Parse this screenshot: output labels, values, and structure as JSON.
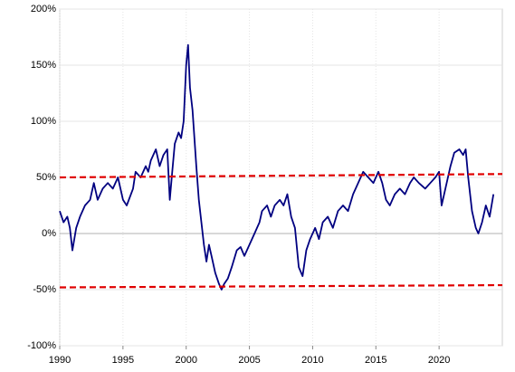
{
  "chart_data": {
    "type": "line",
    "x": [
      1990.0,
      1990.3,
      1990.6,
      1990.8,
      1991.0,
      1991.3,
      1991.6,
      1992.0,
      1992.4,
      1992.7,
      1993.0,
      1993.4,
      1993.8,
      1994.2,
      1994.6,
      1995.0,
      1995.3,
      1995.8,
      1996.0,
      1996.4,
      1996.8,
      1997.0,
      1997.2,
      1997.6,
      1997.9,
      1998.2,
      1998.5,
      1998.7,
      1998.9,
      1999.1,
      1999.4,
      1999.6,
      1999.8,
      2000.0,
      2000.15,
      2000.3,
      2000.5,
      2000.8,
      2001.0,
      2001.2,
      2001.4,
      2001.6,
      2001.8,
      2002.0,
      2002.3,
      2002.6,
      2002.8,
      2003.0,
      2003.3,
      2003.6,
      2004.0,
      2004.3,
      2004.6,
      2005.0,
      2005.4,
      2005.8,
      2006.0,
      2006.4,
      2006.7,
      2007.0,
      2007.4,
      2007.7,
      2008.0,
      2008.3,
      2008.6,
      2008.9,
      2009.2,
      2009.5,
      2009.8,
      2010.2,
      2010.5,
      2010.8,
      2011.2,
      2011.6,
      2012.0,
      2012.4,
      2012.8,
      2013.2,
      2013.6,
      2014.0,
      2014.4,
      2014.8,
      2015.2,
      2015.5,
      2015.8,
      2016.1,
      2016.5,
      2016.9,
      2017.3,
      2017.7,
      2018.0,
      2018.4,
      2018.9,
      2019.3,
      2019.7,
      2020.0,
      2020.2,
      2020.5,
      2020.9,
      2021.2,
      2021.6,
      2021.9,
      2022.1,
      2022.3,
      2022.6,
      2022.9,
      2023.1,
      2023.4,
      2023.7,
      2024.0,
      2024.3
    ],
    "series": [
      {
        "color": "#000080",
        "values": [
          20,
          10,
          15,
          5,
          -15,
          5,
          15,
          25,
          30,
          45,
          30,
          40,
          45,
          40,
          50,
          30,
          25,
          40,
          55,
          50,
          60,
          55,
          65,
          75,
          60,
          70,
          75,
          30,
          55,
          80,
          90,
          85,
          100,
          150,
          168,
          130,
          110,
          60,
          30,
          10,
          -10,
          -25,
          -10,
          -20,
          -35,
          -45,
          -50,
          -45,
          -40,
          -30,
          -15,
          -12,
          -20,
          -10,
          0,
          10,
          20,
          25,
          15,
          25,
          30,
          25,
          35,
          15,
          5,
          -30,
          -38,
          -15,
          -5,
          5,
          -5,
          10,
          15,
          5,
          20,
          25,
          20,
          35,
          45,
          55,
          50,
          45,
          55,
          45,
          30,
          25,
          35,
          40,
          35,
          45,
          50,
          45,
          40,
          45,
          50,
          55,
          25,
          40,
          60,
          72,
          75,
          70,
          75,
          50,
          20,
          5,
          0,
          10,
          25,
          15,
          35
        ]
      }
    ],
    "xlim": [
      1990,
      2025
    ],
    "xticks": [
      1990,
      1995,
      2000,
      2005,
      2010,
      2015,
      2020
    ],
    "ylim": [
      -100,
      200
    ],
    "yticks": [
      {
        "value": -100,
        "label": "-100%"
      },
      {
        "value": -50,
        "label": "-50%"
      },
      {
        "value": 0,
        "label": "0%"
      },
      {
        "value": 50,
        "label": "50%"
      },
      {
        "value": 100,
        "label": "100%"
      },
      {
        "value": 150,
        "label": "150%"
      },
      {
        "value": 200,
        "label": "200%"
      }
    ],
    "negative_tick_color": "#cc0000",
    "grid": true,
    "reference_lines": [
      {
        "color": "#e00000",
        "x": [
          1990,
          2025
        ],
        "values": [
          50,
          53
        ]
      },
      {
        "color": "#e00000",
        "x": [
          1990,
          2025
        ],
        "values": [
          -48,
          -46
        ]
      }
    ]
  }
}
